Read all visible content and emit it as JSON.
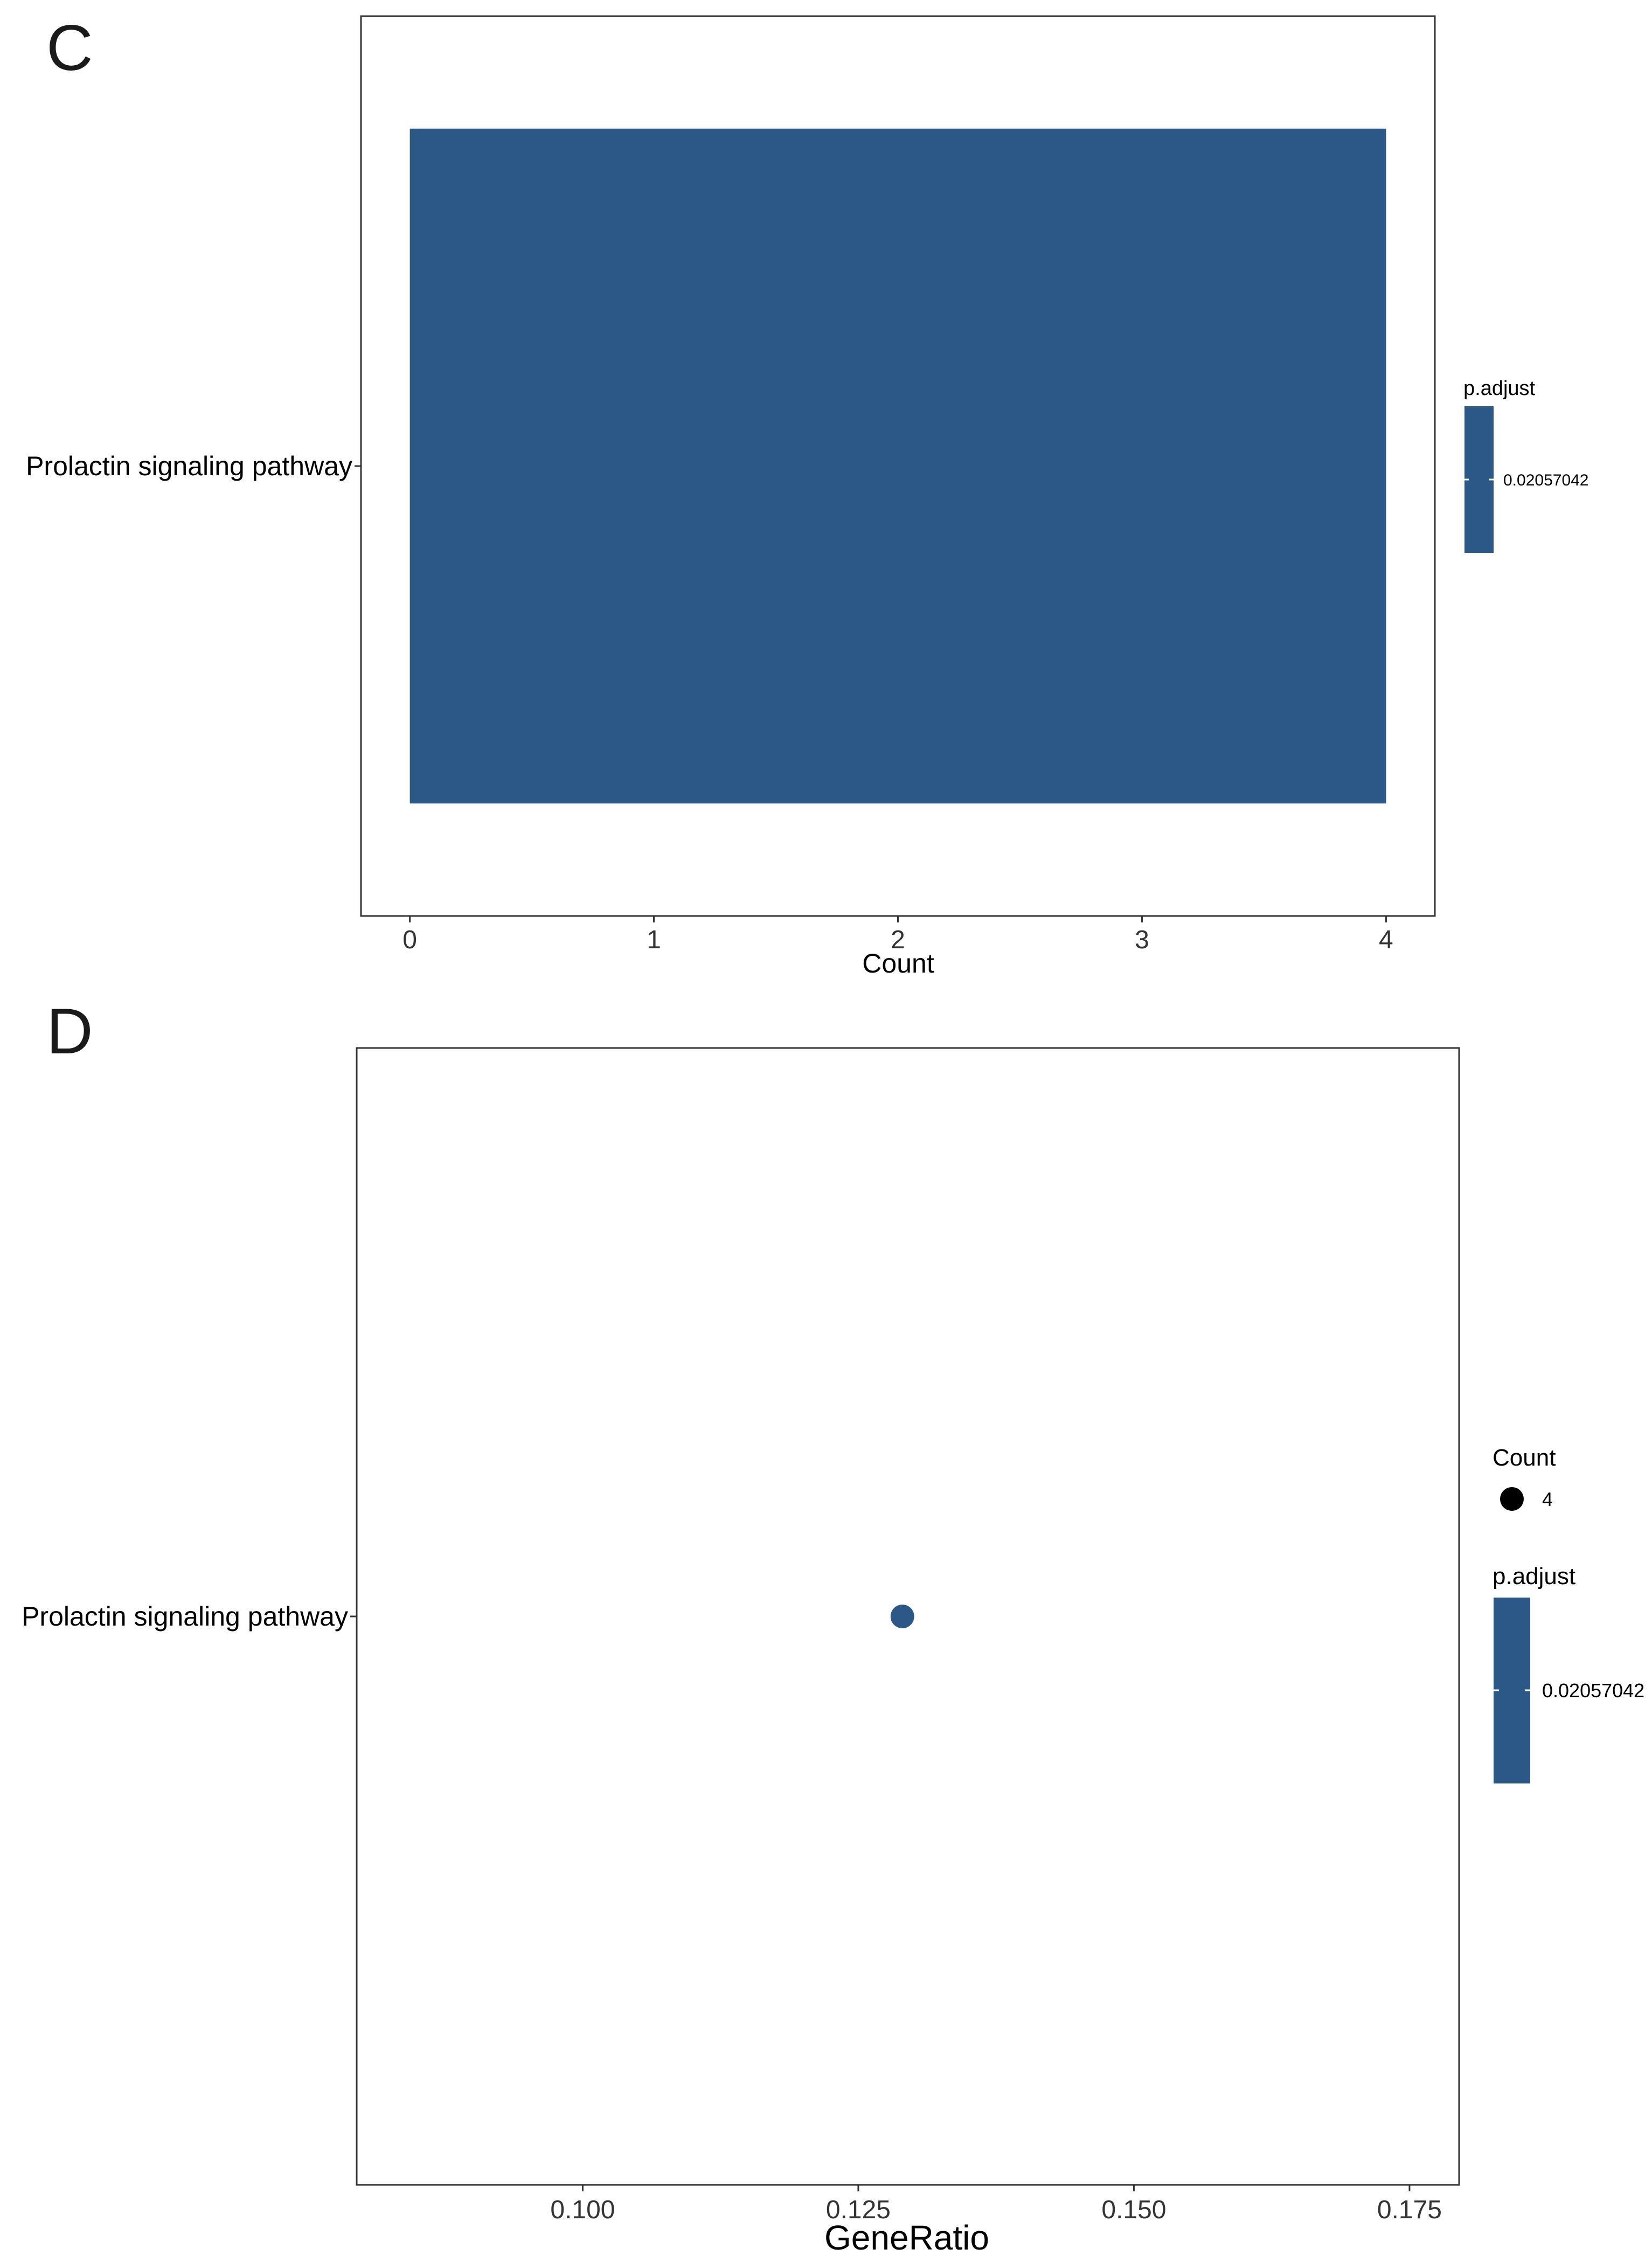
{
  "panels": {
    "c_label": "C",
    "d_label": "D"
  },
  "chart_data": [
    {
      "type": "bar",
      "orientation": "horizontal",
      "categories": [
        "Prolactin signaling pathway"
      ],
      "values": [
        4
      ],
      "xlabel": "Count",
      "ylabel": "",
      "xlim": [
        -0.2,
        4.2
      ],
      "xticks": [
        "0",
        "1",
        "2",
        "3",
        "4"
      ],
      "grid": false,
      "bar_color": "#2b5887",
      "legend": {
        "title": "p.adjust",
        "placement": "right",
        "labels": [
          "0.02057042"
        ]
      }
    },
    {
      "type": "scatter",
      "categories": [
        "Prolactin signaling pathway"
      ],
      "points": [
        {
          "category": "Prolactin signaling pathway",
          "x": 0.129,
          "count": 4,
          "p_adjust": 0.02057042
        }
      ],
      "xlabel": "GeneRatio",
      "ylabel": "",
      "xlim": [
        0.0795,
        0.1795
      ],
      "xticks": [
        "0.100",
        "0.125",
        "0.150",
        "0.175"
      ],
      "grid": false,
      "point_color": "#2b5887",
      "legends": [
        {
          "title": "Count",
          "labels": [
            "4"
          ],
          "placement": "right"
        },
        {
          "title": "p.adjust",
          "labels": [
            "0.02057042"
          ],
          "placement": "right"
        }
      ]
    }
  ]
}
